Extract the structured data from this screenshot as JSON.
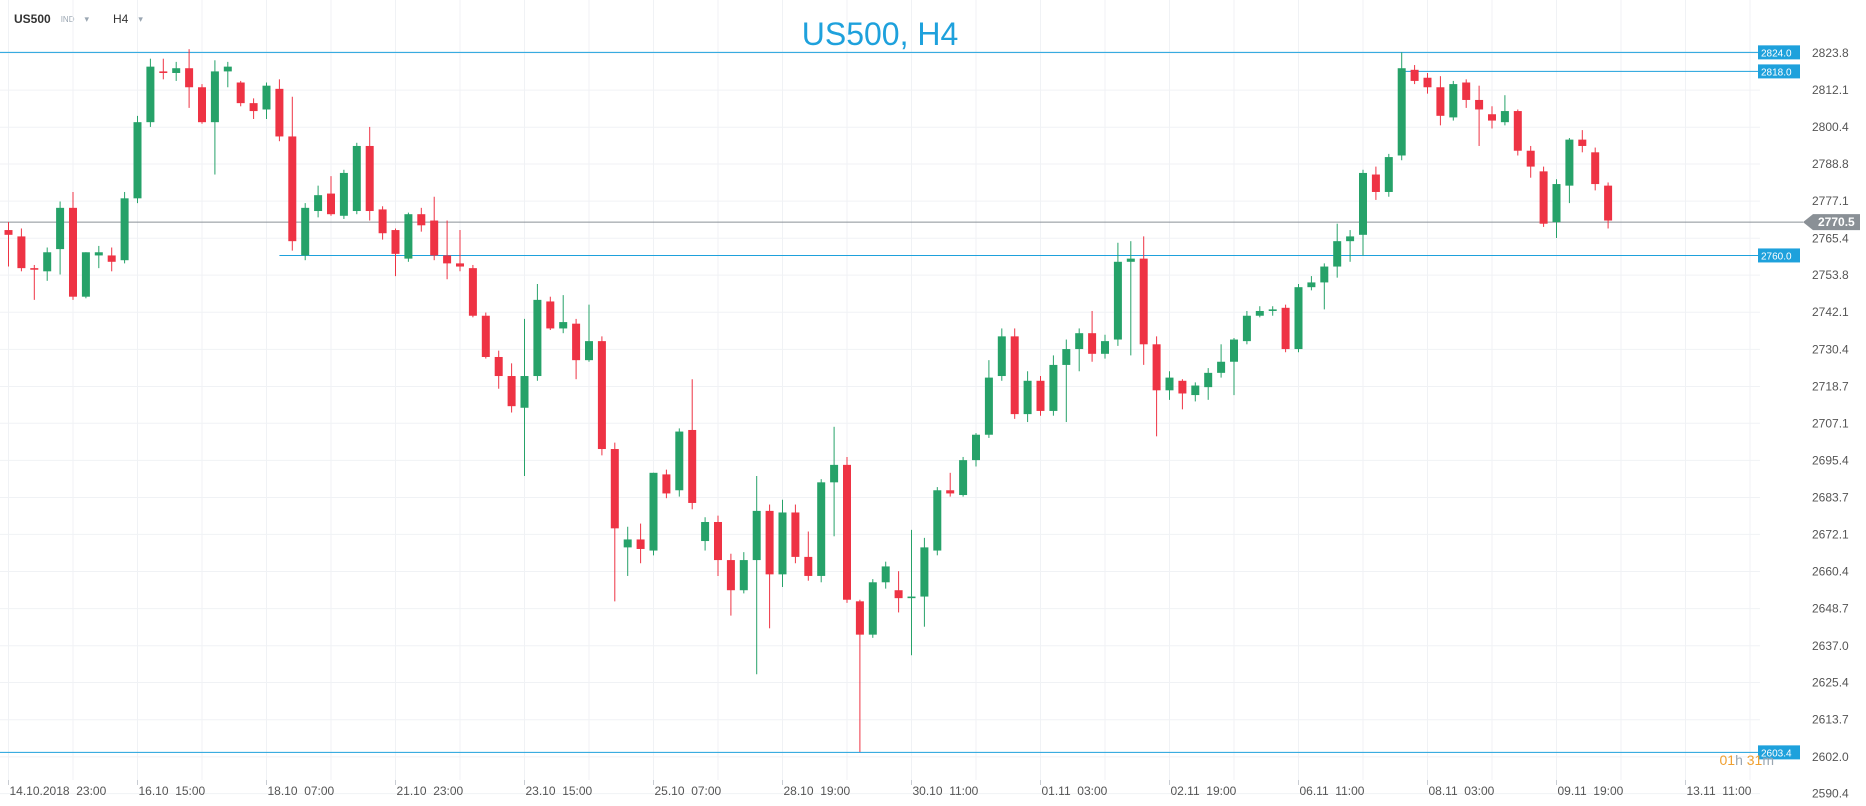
{
  "toolbar": {
    "symbol": "US500",
    "instrument_type": "IND",
    "timeframe": "H4"
  },
  "timer": {
    "hours": "01",
    "hours_unit": "h",
    "minutes": "31",
    "minutes_unit": "m"
  },
  "colors": {
    "up": "#26a269",
    "down": "#ee3344",
    "line": "#1ea1dc",
    "current": "#8a9096",
    "grid": "#f0f2f5",
    "axis_text": "#555555"
  },
  "chart_data": {
    "type": "candlestick",
    "title": "US500, H4",
    "y_ticks": [
      2590.4,
      2602.0,
      2613.7,
      2625.4,
      2637.0,
      2648.7,
      2660.4,
      2672.1,
      2683.7,
      2695.4,
      2707.1,
      2718.7,
      2730.4,
      2742.1,
      2753.8,
      2765.4,
      2777.1,
      2788.8,
      2800.4,
      2812.1,
      2823.8
    ],
    "ylim": [
      2586.5,
      2840.5
    ],
    "x_labels": [
      "14.10.2018  23:00",
      "16.10  15:00",
      "18.10  07:00",
      "21.10  23:00",
      "23.10  15:00",
      "25.10  07:00",
      "28.10  19:00",
      "30.10  11:00",
      "01.11  03:00",
      "02.11  19:00",
      "06.11  11:00",
      "08.11  03:00",
      "09.11  19:00",
      "13.11  11:00"
    ],
    "x_label_index": [
      0,
      10,
      20,
      30,
      40,
      50,
      60,
      70,
      80,
      90,
      100,
      110,
      120,
      130
    ],
    "horizontal_levels": [
      {
        "value": 2824.0,
        "label": "2824.0",
        "start_index": 0
      },
      {
        "value": 2818.0,
        "label": "2818.0",
        "start_index": 108
      },
      {
        "value": 2760.0,
        "label": "2760.0",
        "start_index": 21
      },
      {
        "value": 2603.4,
        "label": "2603.4",
        "start_index": 0
      }
    ],
    "current_price": {
      "value": 2770.5,
      "label": "2770.5"
    },
    "candles": [
      [
        2768.0,
        2770.5,
        2756.5,
        2766.5
      ],
      [
        2766.0,
        2768.5,
        2755.0,
        2756.0
      ],
      [
        2756.0,
        2757.0,
        2746.0,
        2755.5
      ],
      [
        2755.0,
        2762.5,
        2752.0,
        2761.0
      ],
      [
        2762.0,
        2777.0,
        2754.0,
        2775.0
      ],
      [
        2775.0,
        2780.0,
        2746.0,
        2747.0
      ],
      [
        2747.0,
        2761.0,
        2746.5,
        2761.0
      ],
      [
        2760.0,
        2763.0,
        2756.0,
        2761.0
      ],
      [
        2760.0,
        2762.5,
        2755.0,
        2758.0
      ],
      [
        2758.5,
        2780.0,
        2757.5,
        2778.0
      ],
      [
        2778.0,
        2804.0,
        2776.5,
        2802.0
      ],
      [
        2802.0,
        2822.0,
        2800.5,
        2819.5
      ],
      [
        2818.0,
        2822.0,
        2815.5,
        2817.5
      ],
      [
        2817.5,
        2821.0,
        2815.0,
        2819.0
      ],
      [
        2819.0,
        2825.0,
        2806.5,
        2813.0
      ],
      [
        2813.0,
        2814.0,
        2801.5,
        2802.0
      ],
      [
        2802.0,
        2821.5,
        2785.5,
        2818.0
      ],
      [
        2818.0,
        2821.0,
        2813.0,
        2819.5
      ],
      [
        2814.5,
        2815.0,
        2807.0,
        2808.0
      ],
      [
        2808.0,
        2809.5,
        2803.0,
        2805.5
      ],
      [
        2806.0,
        2814.5,
        2803.0,
        2813.5
      ],
      [
        2812.5,
        2815.5,
        2796.0,
        2797.5
      ],
      [
        2797.5,
        2810.0,
        2761.5,
        2764.5
      ],
      [
        2760.0,
        2776.5,
        2758.5,
        2775.0
      ],
      [
        2774.0,
        2782.0,
        2772.0,
        2779.0
      ],
      [
        2779.5,
        2785.0,
        2772.5,
        2773.0
      ],
      [
        2772.5,
        2787.0,
        2771.5,
        2786.0
      ],
      [
        2774.0,
        2795.5,
        2773.0,
        2794.5
      ],
      [
        2794.5,
        2800.5,
        2771.0,
        2774.0
      ],
      [
        2774.5,
        2775.5,
        2765.0,
        2767.0
      ],
      [
        2768.0,
        2768.5,
        2753.5,
        2760.5
      ],
      [
        2759.0,
        2773.5,
        2758.0,
        2773.0
      ],
      [
        2773.0,
        2775.0,
        2767.5,
        2769.5
      ],
      [
        2771.0,
        2778.5,
        2758.5,
        2760.0
      ],
      [
        2760.0,
        2771.0,
        2752.5,
        2757.5
      ],
      [
        2757.5,
        2768.0,
        2755.0,
        2756.5
      ],
      [
        2756.0,
        2757.0,
        2740.5,
        2741.0
      ],
      [
        2741.0,
        2742.0,
        2727.5,
        2728.0
      ],
      [
        2728.0,
        2730.0,
        2718.0,
        2722.0
      ],
      [
        2722.0,
        2726.0,
        2710.5,
        2712.5
      ],
      [
        2712.0,
        2740.0,
        2690.5,
        2722.0
      ],
      [
        2722.0,
        2751.0,
        2720.5,
        2746.0
      ],
      [
        2745.5,
        2747.0,
        2736.5,
        2737.0
      ],
      [
        2737.0,
        2747.5,
        2735.5,
        2739.0
      ],
      [
        2738.5,
        2740.0,
        2721.0,
        2727.0
      ],
      [
        2727.0,
        2744.5,
        2726.5,
        2733.0
      ],
      [
        2733.0,
        2734.5,
        2697.0,
        2699.0
      ],
      [
        2699.0,
        2701.0,
        2651.0,
        2674.0
      ],
      [
        2668.0,
        2674.5,
        2659.0,
        2670.5
      ],
      [
        2670.5,
        2675.5,
        2663.0,
        2667.5
      ],
      [
        2667.0,
        2691.5,
        2665.5,
        2691.5
      ],
      [
        2691.0,
        2692.5,
        2683.5,
        2685.0
      ],
      [
        2686.0,
        2705.5,
        2684.0,
        2704.5
      ],
      [
        2705.0,
        2721.0,
        2680.0,
        2682.0
      ],
      [
        2670.0,
        2677.5,
        2667.0,
        2676.0
      ],
      [
        2676.0,
        2678.0,
        2659.0,
        2664.0
      ],
      [
        2664.0,
        2666.0,
        2646.5,
        2654.5
      ],
      [
        2654.5,
        2666.5,
        2653.5,
        2664.0
      ],
      [
        2664.0,
        2690.5,
        2628.0,
        2679.5
      ],
      [
        2679.5,
        2681.5,
        2642.5,
        2659.5
      ],
      [
        2659.5,
        2683.0,
        2655.5,
        2679.0
      ],
      [
        2679.0,
        2681.5,
        2663.0,
        2665.0
      ],
      [
        2665.0,
        2673.0,
        2657.5,
        2659.0
      ],
      [
        2659.0,
        2689.5,
        2657.0,
        2688.5
      ],
      [
        2688.5,
        2706.0,
        2671.5,
        2694.0
      ],
      [
        2694.0,
        2696.5,
        2650.5,
        2651.5
      ],
      [
        2651.0,
        2651.5,
        2603.5,
        2640.5
      ],
      [
        2640.5,
        2658.0,
        2639.5,
        2657.0
      ],
      [
        2657.0,
        2663.5,
        2655.0,
        2662.0
      ],
      [
        2654.5,
        2660.5,
        2647.5,
        2652.0
      ],
      [
        2652.0,
        2673.5,
        2634.0,
        2652.5
      ],
      [
        2652.5,
        2671.0,
        2643.0,
        2668.0
      ],
      [
        2667.0,
        2687.0,
        2665.5,
        2686.0
      ],
      [
        2686.0,
        2691.5,
        2684.0,
        2685.0
      ],
      [
        2684.5,
        2696.5,
        2684.0,
        2695.5
      ],
      [
        2695.5,
        2704.0,
        2693.5,
        2703.5
      ],
      [
        2703.5,
        2727.0,
        2702.5,
        2721.5
      ],
      [
        2722.0,
        2737.0,
        2720.5,
        2734.5
      ],
      [
        2734.5,
        2737.0,
        2708.5,
        2710.0
      ],
      [
        2710.0,
        2723.5,
        2707.5,
        2720.5
      ],
      [
        2720.5,
        2722.0,
        2709.5,
        2711.0
      ],
      [
        2711.0,
        2728.5,
        2709.5,
        2725.5
      ],
      [
        2725.5,
        2733.5,
        2707.5,
        2730.5
      ],
      [
        2730.5,
        2737.0,
        2723.5,
        2735.5
      ],
      [
        2735.5,
        2742.5,
        2726.5,
        2729.0
      ],
      [
        2729.0,
        2735.0,
        2727.5,
        2733.0
      ],
      [
        2733.5,
        2764.0,
        2731.5,
        2758.0
      ],
      [
        2758.0,
        2764.5,
        2728.5,
        2759.0
      ],
      [
        2759.0,
        2766.0,
        2725.5,
        2732.0
      ],
      [
        2732.0,
        2734.5,
        2703.0,
        2717.5
      ],
      [
        2717.5,
        2723.5,
        2714.5,
        2721.5
      ],
      [
        2720.5,
        2721.0,
        2711.5,
        2716.5
      ],
      [
        2716.0,
        2720.0,
        2714.0,
        2719.0
      ],
      [
        2718.5,
        2724.5,
        2714.5,
        2723.0
      ],
      [
        2723.0,
        2732.0,
        2721.5,
        2726.5
      ],
      [
        2726.5,
        2734.0,
        2716.0,
        2733.5
      ],
      [
        2733.0,
        2742.5,
        2732.0,
        2741.0
      ],
      [
        2741.0,
        2744.0,
        2740.5,
        2742.5
      ],
      [
        2742.5,
        2744.0,
        2741.0,
        2743.0
      ],
      [
        2743.5,
        2744.5,
        2729.5,
        2730.5
      ],
      [
        2730.5,
        2751.0,
        2729.5,
        2750.0
      ],
      [
        2750.0,
        2753.5,
        2749.0,
        2751.5
      ],
      [
        2751.5,
        2757.5,
        2743.0,
        2756.5
      ],
      [
        2756.5,
        2770.0,
        2753.0,
        2764.5
      ],
      [
        2764.5,
        2768.0,
        2758.0,
        2766.0
      ],
      [
        2766.5,
        2787.0,
        2760.0,
        2786.0
      ],
      [
        2785.5,
        2788.0,
        2777.5,
        2780.0
      ],
      [
        2780.0,
        2792.0,
        2778.5,
        2791.0
      ],
      [
        2791.5,
        2824.0,
        2790.0,
        2819.0
      ],
      [
        2818.5,
        2820.0,
        2814.0,
        2815.0
      ],
      [
        2816.0,
        2817.5,
        2811.0,
        2813.0
      ],
      [
        2813.0,
        2816.5,
        2801.0,
        2804.0
      ],
      [
        2803.5,
        2815.0,
        2802.5,
        2814.0
      ],
      [
        2814.5,
        2815.5,
        2806.5,
        2809.0
      ],
      [
        2809.0,
        2813.5,
        2794.5,
        2806.0
      ],
      [
        2804.5,
        2807.0,
        2800.0,
        2802.5
      ],
      [
        2802.0,
        2810.5,
        2801.0,
        2805.5
      ],
      [
        2805.5,
        2806.0,
        2791.5,
        2793.0
      ],
      [
        2793.0,
        2794.5,
        2784.5,
        2788.0
      ],
      [
        2786.5,
        2788.0,
        2769.0,
        2770.0
      ],
      [
        2770.5,
        2784.0,
        2765.5,
        2782.5
      ],
      [
        2782.0,
        2797.0,
        2776.5,
        2796.5
      ],
      [
        2796.5,
        2799.5,
        2792.5,
        2794.5
      ],
      [
        2792.5,
        2794.0,
        2780.5,
        2782.5
      ],
      [
        2782.0,
        2783.0,
        2768.5,
        2771.0
      ]
    ]
  }
}
